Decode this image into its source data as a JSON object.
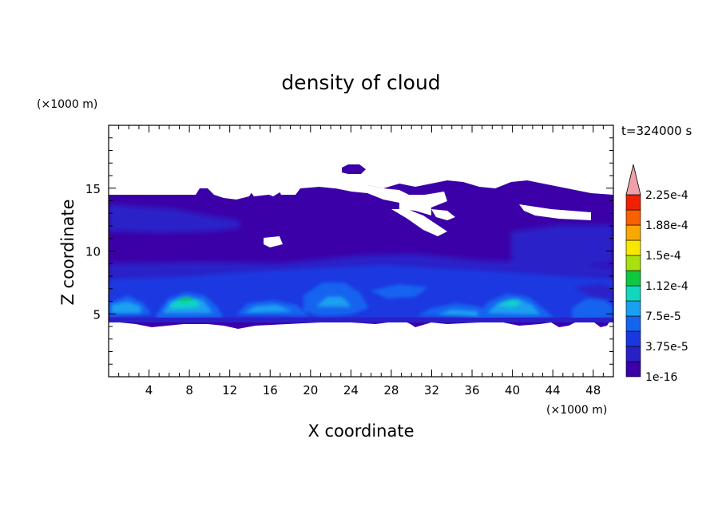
{
  "chart_data": {
    "type": "heatmap",
    "title": "density of cloud",
    "xlabel": "X coordinate",
    "ylabel": "Z coordinate",
    "x_unit": "(×1000 m)",
    "y_unit": "(×1000 m)",
    "time_label": "t=324000 s",
    "xlim": [
      0,
      50
    ],
    "ylim": [
      0,
      20
    ],
    "x_ticks": [
      4,
      8,
      12,
      16,
      20,
      24,
      28,
      32,
      36,
      40,
      44,
      48
    ],
    "y_ticks": [
      5,
      10,
      15
    ],
    "colorbar": {
      "levels": [
        "1e-16",
        "3.75e-5",
        "7.5e-5",
        "1.12e-4",
        "1.5e-4",
        "1.88e-4",
        "2.25e-4"
      ],
      "colors": [
        "#3c00a8",
        "#2a20c8",
        "#1a38e0",
        "#1464f0",
        "#1aa0f0",
        "#10d8c0",
        "#10c840",
        "#a8e010",
        "#f8e800",
        "#f8a800",
        "#f86000",
        "#f02000",
        "#f0a0a8"
      ],
      "extend": "max"
    },
    "regions": {
      "cloud_base_km": 4.3,
      "main_layer_top_km": 14.5,
      "isolated_patch": {
        "x": [
          23.5,
          26.5
        ],
        "z": [
          16.0,
          16.8
        ]
      }
    }
  }
}
